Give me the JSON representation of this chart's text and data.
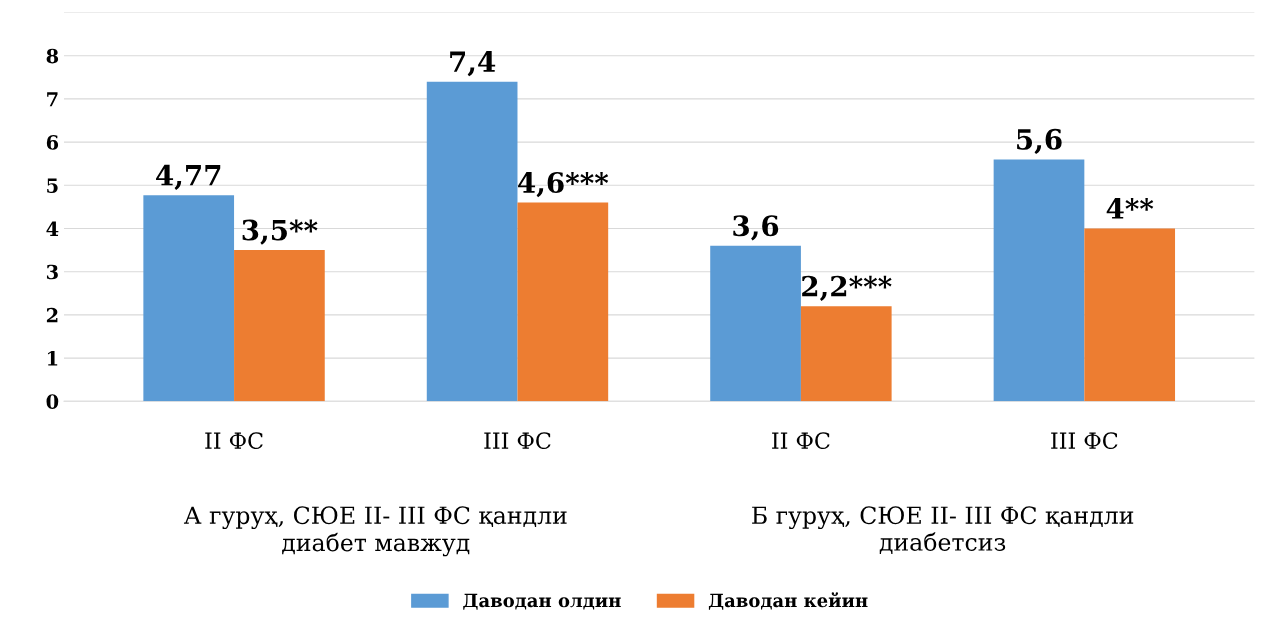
{
  "chart_data": {
    "type": "bar",
    "categories": [
      "II ФС",
      "III ФС",
      "II ФС",
      "III ФС"
    ],
    "series": [
      {
        "name": "Даводан олдин",
        "color": "#5b9bd5",
        "values": [
          4.77,
          7.4,
          3.6,
          5.6
        ],
        "value_labels": [
          "4,77",
          "7,4",
          "3,6",
          "5,6"
        ]
      },
      {
        "name": "Даводан кейин",
        "color": "#ed7d31",
        "values": [
          3.5,
          4.6,
          2.2,
          4
        ],
        "value_labels": [
          "3,5**",
          "4,6***",
          "2,2***",
          "4**"
        ]
      }
    ],
    "annotations": [
      "А гуруҳ, СЮЕ II- III ФС қандли\nдиабет мавжуд",
      "Б гуруҳ, СЮЕ II- III ФС қандли\nдиабетсиз"
    ],
    "ylim": [
      0,
      9
    ],
    "yticks": [
      0,
      1,
      2,
      3,
      4,
      5,
      6,
      7,
      8
    ],
    "grid": "y",
    "legend": "bottom"
  }
}
